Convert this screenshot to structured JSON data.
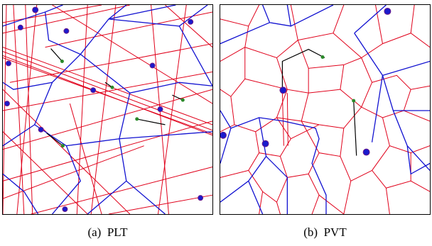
{
  "captions": [
    {
      "label": "(a)",
      "text": "PLT"
    },
    {
      "label": "(b)",
      "text": "PVT"
    }
  ],
  "colors": {
    "fine_edges": "#e0001a",
    "coarse_edges": "#1010d0",
    "connector": "#000000",
    "site_fill": "#1a1acc",
    "site_border": "#6a1a8a",
    "midpoint": "#2a8a2a"
  }
}
